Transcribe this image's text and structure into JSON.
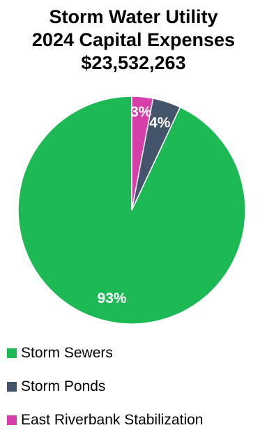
{
  "chart_data": {
    "type": "pie",
    "title": "Storm Water Utility",
    "subtitle_lines": [
      "2024 Capital Expenses",
      "$23,532,263"
    ],
    "categories": [
      "Storm Sewers",
      "Storm Ponds",
      "East Riverbank Stabilization"
    ],
    "values": [
      93,
      4,
      3
    ],
    "value_labels": [
      "93%",
      "4%",
      "3%"
    ],
    "colors": [
      "#1db954",
      "#44546a",
      "#d63fa8"
    ],
    "legend_position": "bottom"
  }
}
